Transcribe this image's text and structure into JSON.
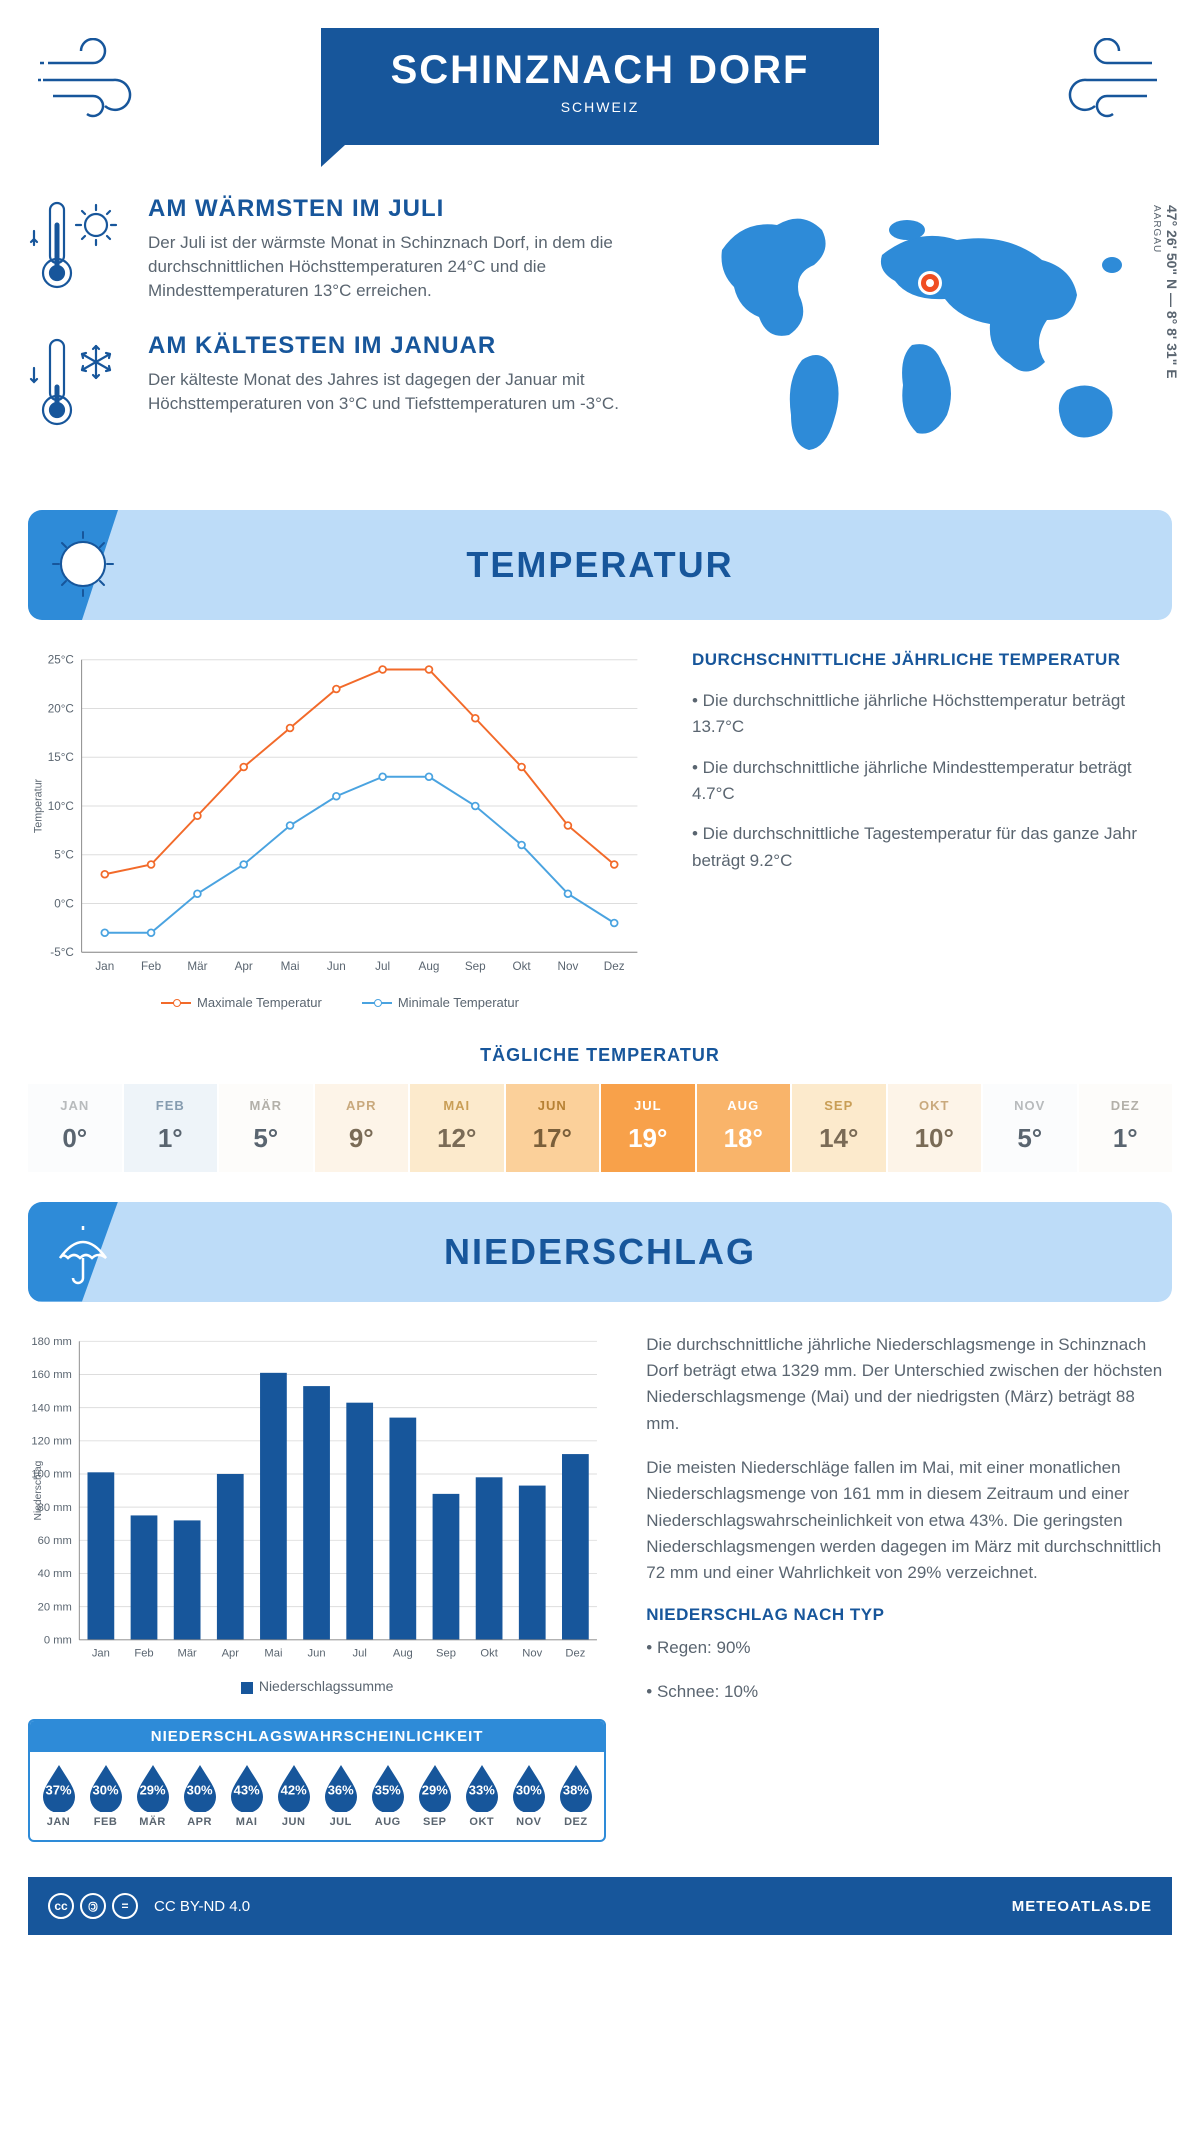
{
  "header": {
    "title": "SCHINZNACH DORF",
    "subtitle": "SCHWEIZ"
  },
  "coords": {
    "lat": "47° 26' 50\" N",
    "lon": "8° 8' 31\" E",
    "region": "AARGAU"
  },
  "facts": {
    "warm": {
      "title": "AM WÄRMSTEN IM JULI",
      "text": "Der Juli ist der wärmste Monat in Schinznach Dorf, in dem die durchschnittlichen Höchsttemperaturen 24°C und die Mindesttemperaturen 13°C erreichen."
    },
    "cold": {
      "title": "AM KÄLTESTEN IM JANUAR",
      "text": "Der kälteste Monat des Jahres ist dagegen der Januar mit Höchsttemperaturen von 3°C und Tiefsttemperaturen um -3°C."
    }
  },
  "sections": {
    "temp": "TEMPERATUR",
    "precip": "NIEDERSCHLAG"
  },
  "months": [
    "Jan",
    "Feb",
    "Mär",
    "Apr",
    "Mai",
    "Jun",
    "Jul",
    "Aug",
    "Sep",
    "Okt",
    "Nov",
    "Dez"
  ],
  "months_upper": [
    "JAN",
    "FEB",
    "MÄR",
    "APR",
    "MAI",
    "JUN",
    "JUL",
    "AUG",
    "SEP",
    "OKT",
    "NOV",
    "DEZ"
  ],
  "temp_chart": {
    "type": "line",
    "ylabel": "Temperatur",
    "ylim": [
      -5,
      25
    ],
    "ytick_step": 5,
    "y_tick_labels": [
      "-5°C",
      "0°C",
      "5°C",
      "10°C",
      "15°C",
      "20°C",
      "25°C"
    ],
    "series": {
      "max": {
        "label": "Maximale Temperatur",
        "color": "#f26a2a",
        "values": [
          3,
          4,
          9,
          14,
          18,
          22,
          24,
          24,
          19,
          14,
          8,
          4
        ]
      },
      "min": {
        "label": "Minimale Temperatur",
        "color": "#4aa3e0",
        "values": [
          -3,
          -3,
          1,
          4,
          8,
          11,
          13,
          13,
          10,
          6,
          1,
          -2
        ]
      }
    },
    "grid_color": "#dddddd",
    "axis_color": "#888888",
    "background_color": "#ffffff",
    "marker": "circle",
    "line_width": 2
  },
  "temp_text": {
    "heading": "DURCHSCHNITTLICHE JÄHRLICHE TEMPERATUR",
    "lines": [
      "• Die durchschnittliche jährliche Höchsttemperatur beträgt 13.7°C",
      "• Die durchschnittliche jährliche Mindesttemperatur beträgt 4.7°C",
      "• Die durchschnittliche Tagestemperatur für das ganze Jahr beträgt 9.2°C"
    ]
  },
  "daily_temp": {
    "heading": "TÄGLICHE TEMPERATUR",
    "values": [
      "0°",
      "1°",
      "5°",
      "9°",
      "12°",
      "17°",
      "19°",
      "18°",
      "14°",
      "10°",
      "5°",
      "1°"
    ],
    "cell_bg": [
      "#fbfcfd",
      "#eef4f9",
      "#fdfcfa",
      "#fdf4e8",
      "#fceacc",
      "#fbd09a",
      "#f8a14a",
      "#f9b46a",
      "#fceacc",
      "#fdf4e8",
      "#fbfcfd",
      "#fdfcfa"
    ],
    "month_color": [
      "#b8bbbd",
      "#869cb0",
      "#b3b0a9",
      "#c9a97d",
      "#c99e56",
      "#b78134",
      "#ffffff",
      "#ffffff",
      "#c99e56",
      "#c9a97d",
      "#b8bbbd",
      "#b3b0a9"
    ],
    "value_color": [
      "#5a6570",
      "#5a6570",
      "#5a6570",
      "#7a6b56",
      "#7a6b56",
      "#7a5f3a",
      "#ffffff",
      "#ffffff",
      "#7a6b56",
      "#7a6b56",
      "#5a6570",
      "#5a6570"
    ]
  },
  "precip_chart": {
    "type": "bar",
    "ylabel": "Niederschlag",
    "ylim": [
      0,
      180
    ],
    "ytick_step": 20,
    "values": [
      101,
      75,
      72,
      100,
      161,
      153,
      143,
      134,
      88,
      98,
      93,
      112
    ],
    "bar_color": "#17569b",
    "grid_color": "#dddddd",
    "bar_width": 0.62,
    "legend": "Niederschlagssumme"
  },
  "precip_text": {
    "p1": "Die durchschnittliche jährliche Niederschlagsmenge in Schinznach Dorf beträgt etwa 1329 mm. Der Unterschied zwischen der höchsten Niederschlagsmenge (Mai) und der niedrigsten (März) beträgt 88 mm.",
    "p2": "Die meisten Niederschläge fallen im Mai, mit einer monatlichen Niederschlagsmenge von 161 mm in diesem Zeitraum und einer Niederschlagswahrscheinlichkeit von etwa 43%. Die geringsten Niederschlagsmengen werden dagegen im März mit durchschnittlich 72 mm und einer Wahrlichkeit von 29% verzeichnet.",
    "type_heading": "NIEDERSCHLAG NACH TYP",
    "types": [
      "• Regen: 90%",
      "• Schnee: 10%"
    ]
  },
  "prob": {
    "heading": "NIEDERSCHLAGSWAHRSCHEINLICHKEIT",
    "values": [
      "37%",
      "30%",
      "29%",
      "30%",
      "43%",
      "42%",
      "36%",
      "35%",
      "29%",
      "33%",
      "30%",
      "38%"
    ],
    "drop_color": "#17569b"
  },
  "footer": {
    "license": "CC BY-ND 4.0",
    "brand": "METEOATLAS.DE"
  },
  "colors": {
    "primary": "#17569b",
    "light": "#bddcf8",
    "accent": "#2e8bd8",
    "text": "#5a6570"
  }
}
